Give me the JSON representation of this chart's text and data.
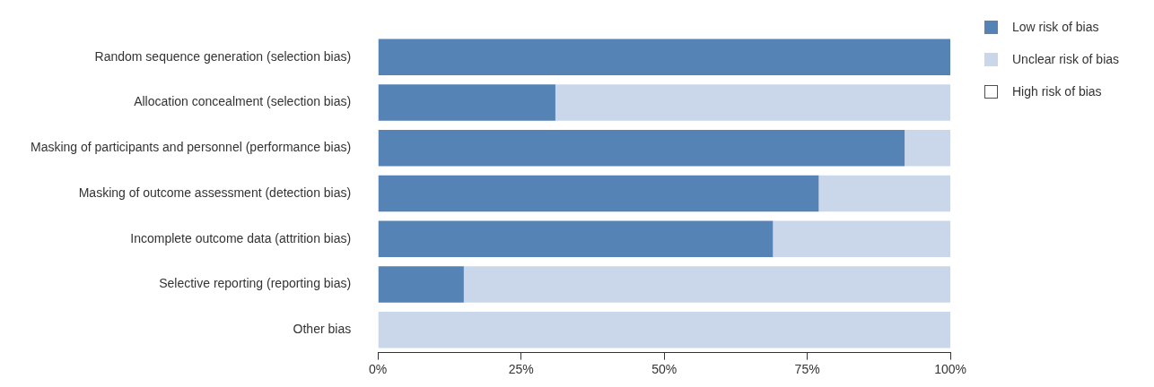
{
  "chart_data": {
    "type": "bar",
    "orientation": "horizontal",
    "stacked": true,
    "categories": [
      "Random sequence generation (selection bias)",
      "Allocation concealment (selection bias)",
      "Masking of participants and personnel (performance bias)",
      "Masking of outcome assessment (detection bias)",
      "Incomplete outcome data (attrition bias)",
      "Selective reporting (reporting bias)",
      "Other bias"
    ],
    "series": [
      {
        "name": "Low risk of bias",
        "color": "#5683b5",
        "values": [
          100,
          31,
          92,
          77,
          69,
          15,
          0
        ]
      },
      {
        "name": "Unclear risk of bias",
        "color": "#cad7ea",
        "values": [
          0,
          69,
          8,
          23,
          31,
          85,
          100
        ]
      },
      {
        "name": "High risk of bias",
        "color": "#ffffff",
        "values": [
          0,
          0,
          0,
          0,
          0,
          0,
          0
        ]
      }
    ],
    "xlim": [
      0,
      100
    ],
    "xticks": [
      {
        "value": 0,
        "label": "0%"
      },
      {
        "value": 25,
        "label": "25%"
      },
      {
        "value": 50,
        "label": "50%"
      },
      {
        "value": 75,
        "label": "75%"
      },
      {
        "value": 100,
        "label": "100%"
      }
    ],
    "grid": false,
    "legend": "top right"
  }
}
